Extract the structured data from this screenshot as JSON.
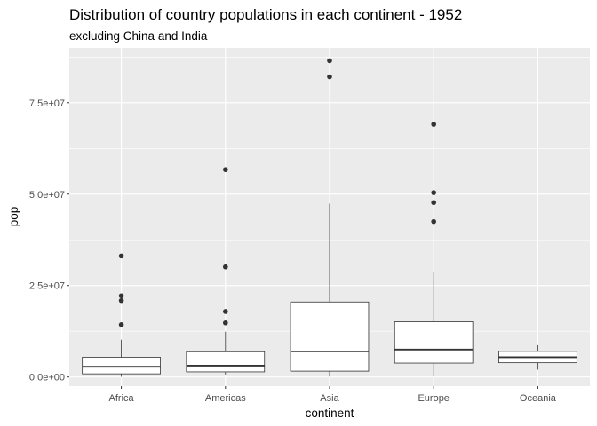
{
  "chart_data": {
    "type": "boxplot",
    "title": "Distribution of country populations in each continent - 1952",
    "subtitle": "excluding China and India",
    "xlabel": "continent",
    "ylabel": "pop",
    "ylim": [
      -2500000,
      90000000
    ],
    "y_ticks": [
      0,
      25000000,
      50000000,
      75000000
    ],
    "y_tick_labels": [
      "0.0e+00",
      "2.5e+07",
      "5.0e+07",
      "7.5e+07"
    ],
    "categories": [
      "Africa",
      "Americas",
      "Asia",
      "Europe",
      "Oceania"
    ],
    "boxes": [
      {
        "category": "Africa",
        "whisker_low": 60000,
        "q1": 860000,
        "median": 2800000,
        "q3": 5400000,
        "whisker_high": 10200000,
        "outliers": [
          14300000,
          20900000,
          22200000,
          33100000
        ]
      },
      {
        "category": "Americas",
        "whisker_low": 660000,
        "q1": 1400000,
        "median": 3100000,
        "q3": 6900000,
        "whisker_high": 12400000,
        "outliers": [
          14800000,
          17900000,
          30100000,
          56700000
        ]
      },
      {
        "category": "Asia",
        "whisker_low": 110000,
        "q1": 1600000,
        "median": 7000000,
        "q3": 20500000,
        "whisker_high": 47400000,
        "outliers": [
          82100000,
          86500000
        ]
      },
      {
        "category": "Europe",
        "whisker_low": 150000,
        "q1": 3800000,
        "median": 7500000,
        "q3": 15100000,
        "whisker_high": 28600000,
        "outliers": [
          42500000,
          47700000,
          50400000,
          69100000
        ]
      },
      {
        "category": "Oceania",
        "whisker_low": 1990000,
        "q1": 3900000,
        "median": 5400000,
        "q3": 7000000,
        "whisker_high": 8700000,
        "outliers": []
      }
    ],
    "colors": {
      "panel": "#ebebeb",
      "grid": "#ffffff",
      "box_line": "#333333",
      "box_fill": "#ffffff",
      "outlier": "#333333"
    },
    "grid": true,
    "legend": "none"
  }
}
